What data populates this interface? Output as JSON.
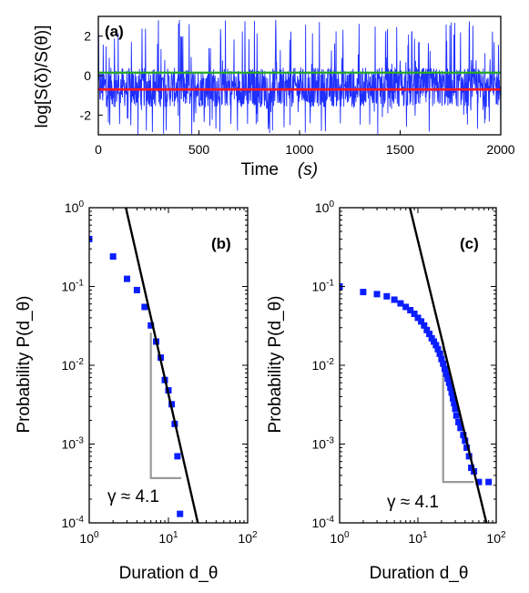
{
  "chart_data": [
    {
      "type": "line",
      "panel_label": "(a)",
      "xlabel_text": "Time",
      "xlabel_unit": "(s)",
      "ylabel": "log[S(δ)/S(θ)]",
      "xlim": [
        0,
        2000
      ],
      "ylim": [
        -3,
        3
      ],
      "xticks": [
        "0",
        "500",
        "1000",
        "1500",
        "2000"
      ],
      "yticks": [
        "-2",
        "0",
        "2"
      ],
      "series": [
        {
          "color": "#1f2fff",
          "description_values": {
            "typical_band": [
              -1.6,
              0.4
            ],
            "spike_max": 2.9,
            "spike_min": -3.0
          }
        },
        {
          "color": "#ff1a1a",
          "y": -0.7
        },
        {
          "color": "#22aa22",
          "y": 0.15
        }
      ]
    },
    {
      "type": "scatter",
      "panel_label": "(b)",
      "xlabel": "Duration d_θ",
      "ylabel": "Probability P(d_θ)",
      "xscale": "log",
      "yscale": "log",
      "xlim": [
        1,
        100
      ],
      "ylim": [
        0.0001,
        1
      ],
      "xticks": [
        "10^0",
        "10^1",
        "10^2"
      ],
      "yticks": [
        "10^-4",
        "10^-3",
        "10^-2",
        "10^-1",
        "10^0"
      ],
      "points": {
        "color": "#0a1eff",
        "x": [
          1,
          2,
          3,
          4,
          5,
          6,
          7,
          8,
          9,
          10,
          11,
          12,
          13,
          14
        ],
        "y": [
          0.4,
          0.24,
          0.125,
          0.09,
          0.055,
          0.032,
          0.02,
          0.0125,
          0.0065,
          0.0048,
          0.0032,
          0.0018,
          0.0007,
          0.00013
        ]
      },
      "fit_line": {
        "color": "#000000",
        "x": [
          2.9,
          23.5
        ],
        "y": [
          1,
          0.0001
        ]
      },
      "slope_triangle": {
        "color": "#999999",
        "x": [
          6,
          14.5
        ],
        "y": [
          0.026,
          0.00037
        ]
      },
      "annotation": "γ ≈ 4.1"
    },
    {
      "type": "scatter",
      "panel_label": "(c)",
      "xlabel": "Duration d_θ",
      "ylabel": "Probability P(d_θ)",
      "xscale": "log",
      "yscale": "log",
      "xlim": [
        1,
        100
      ],
      "ylim": [
        0.0001,
        1
      ],
      "xticks": [
        "10^0",
        "10^1",
        "10^2"
      ],
      "yticks": [
        "10^-4",
        "10^-3",
        "10^-2",
        "10^-1",
        "10^0"
      ],
      "points": {
        "color": "#0a1eff",
        "x": [
          1,
          2,
          3,
          4,
          5,
          6,
          7,
          8,
          9,
          10,
          11,
          12,
          13,
          14,
          15,
          16,
          17,
          18,
          19,
          20,
          21,
          22,
          23,
          24,
          25,
          26,
          27,
          28,
          29,
          30,
          31,
          33,
          35,
          38,
          40,
          42,
          45,
          48,
          52,
          60,
          80
        ],
        "y": [
          0.1,
          0.085,
          0.08,
          0.075,
          0.068,
          0.061,
          0.055,
          0.05,
          0.045,
          0.04,
          0.036,
          0.032,
          0.028,
          0.025,
          0.022,
          0.02,
          0.018,
          0.016,
          0.014,
          0.012,
          0.0105,
          0.009,
          0.0078,
          0.0068,
          0.006,
          0.0052,
          0.0045,
          0.0038,
          0.0033,
          0.0028,
          0.0023,
          0.0019,
          0.0016,
          0.0013,
          0.0011,
          0.0009,
          0.0007,
          0.0005,
          0.00045,
          0.00033,
          0.00033
        ]
      },
      "fit_line": {
        "color": "#000000",
        "x": [
          7.9,
          75
        ],
        "y": [
          1,
          0.0001
        ]
      },
      "slope_triangle": {
        "color": "#999999",
        "x": [
          21,
          52
        ],
        "y": [
          0.02,
          0.00033
        ]
      },
      "annotation": "γ ≈ 4.1"
    }
  ]
}
